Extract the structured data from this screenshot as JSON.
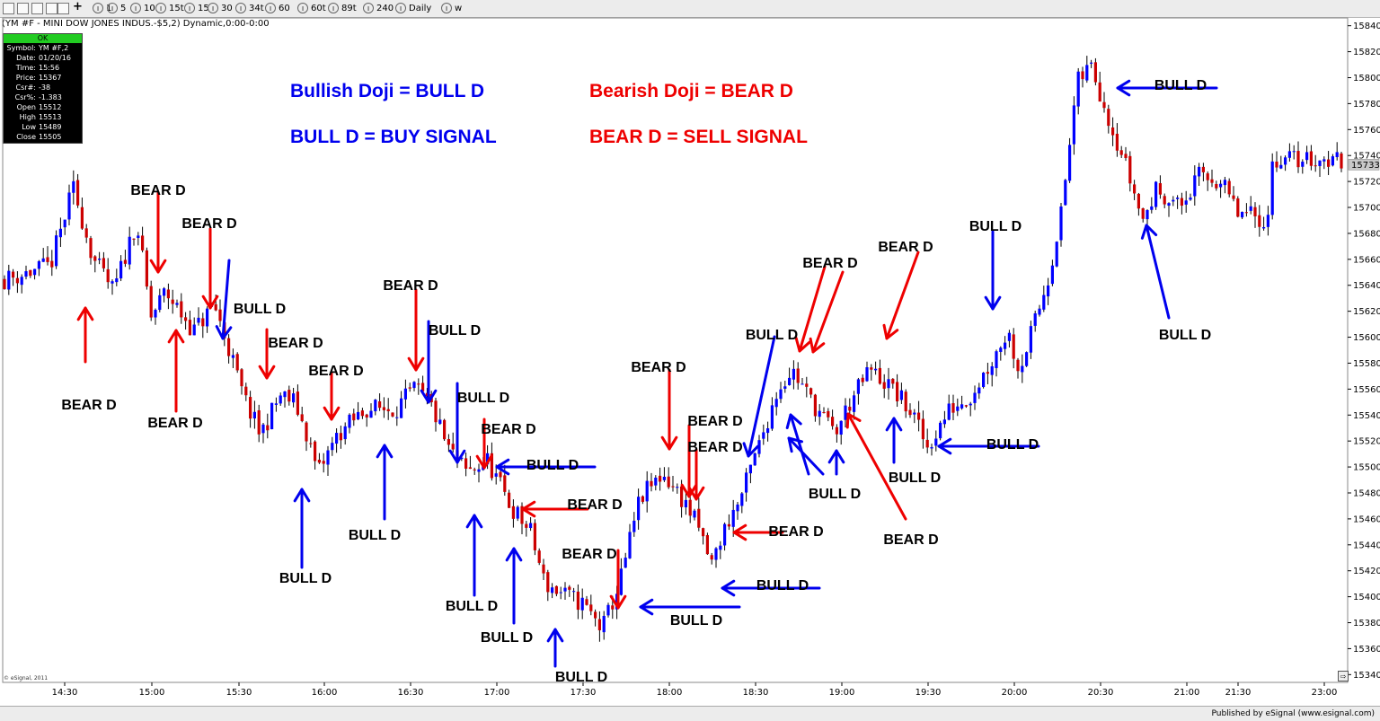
{
  "toolbar": {
    "intervals": [
      {
        "label": "1"
      },
      {
        "label": "5"
      },
      {
        "label": "10"
      },
      {
        "label": "15t"
      },
      {
        "label": "15"
      },
      {
        "label": "30"
      },
      {
        "label": "34t"
      },
      {
        "label": "60"
      },
      {
        "label": "60t"
      },
      {
        "label": "89t"
      },
      {
        "label": "240"
      },
      {
        "label": "Daily"
      },
      {
        "label": "w"
      }
    ]
  },
  "chart_title": "(YM #F - MINI DOW JONES INDUS.-$5,2) Dynamic,0:00-0:00",
  "info_box": {
    "status": "OK",
    "rows": [
      {
        "key": "Symbol:",
        "value": "YM #F,2"
      },
      {
        "key": "Date:",
        "value": "01/20/16"
      },
      {
        "key": "Time:",
        "value": "15:56"
      },
      {
        "key": "Price:",
        "value": "15367"
      },
      {
        "key": "Csr#:",
        "value": "-38"
      },
      {
        "key": "Csr%:",
        "value": "-1.383"
      },
      {
        "key": "Open",
        "value": "15512"
      },
      {
        "key": "High",
        "value": "15513"
      },
      {
        "key": "Low",
        "value": "15489"
      },
      {
        "key": "Close",
        "value": "15505"
      }
    ]
  },
  "legend": {
    "bull_def": "Bullish Doji = BULL D",
    "bull_signal": "BULL D = BUY SIGNAL",
    "bear_def": "Bearish Doji = BEAR D",
    "bear_signal": "BEAR D = SELL SIGNAL"
  },
  "footer": {
    "publisher": "Published by eSignal (www.esignal.com)",
    "copyright": "© eSignal, 2011"
  },
  "colors": {
    "up": "#0000ff",
    "down": "#cc0000",
    "bull": "#0000ee",
    "bear": "#ee0000"
  },
  "chart_data": {
    "type": "candlestick",
    "ylim": [
      15334,
      15846
    ],
    "yticks": [
      15340,
      15360,
      15380,
      15400,
      15420,
      15440,
      15460,
      15480,
      15500,
      15520,
      15540,
      15560,
      15580,
      15600,
      15620,
      15640,
      15660,
      15680,
      15700,
      15720,
      15740,
      15760,
      15780,
      15800,
      15820,
      15840
    ],
    "xticks": [
      "14:30",
      "15:00",
      "15:30",
      "16:00",
      "16:30",
      "17:00",
      "17:30",
      "18:00",
      "18:30",
      "19:00",
      "19:30",
      "20:00",
      "20:30",
      "21:00",
      "21:30",
      "23:00"
    ],
    "last_price": "15733",
    "close_path": [
      [
        "14:10",
        15645
      ],
      [
        "14:25",
        15655
      ],
      [
        "14:33",
        15715
      ],
      [
        "14:40",
        15660
      ],
      [
        "14:47",
        15635
      ],
      [
        "14:55",
        15690
      ],
      [
        "15:00",
        15615
      ],
      [
        "15:05",
        15635
      ],
      [
        "15:15",
        15605
      ],
      [
        "15:22",
        15625
      ],
      [
        "15:28",
        15585
      ],
      [
        "15:32",
        15555
      ],
      [
        "15:38",
        15525
      ],
      [
        "15:45",
        15555
      ],
      [
        "15:50",
        15550
      ],
      [
        "15:55",
        15520
      ],
      [
        "15:58",
        15495
      ],
      [
        "16:05",
        15525
      ],
      [
        "16:15",
        15545
      ],
      [
        "16:25",
        15545
      ],
      [
        "16:32",
        15560
      ],
      [
        "16:38",
        15545
      ],
      [
        "16:43",
        15515
      ],
      [
        "16:50",
        15495
      ],
      [
        "16:57",
        15505
      ],
      [
        "17:05",
        15470
      ],
      [
        "17:12",
        15450
      ],
      [
        "17:17",
        15410
      ],
      [
        "17:25",
        15400
      ],
      [
        "17:30",
        15395
      ],
      [
        "17:37",
        15375
      ],
      [
        "17:43",
        15410
      ],
      [
        "17:50",
        15475
      ],
      [
        "17:58",
        15495
      ],
      [
        "18:05",
        15475
      ],
      [
        "18:10",
        15455
      ],
      [
        "18:15",
        15425
      ],
      [
        "18:20",
        15455
      ],
      [
        "18:25",
        15475
      ],
      [
        "18:32",
        15520
      ],
      [
        "18:38",
        15560
      ],
      [
        "18:43",
        15575
      ],
      [
        "18:50",
        15550
      ],
      [
        "18:58",
        15525
      ],
      [
        "19:02",
        15545
      ],
      [
        "19:10",
        15575
      ],
      [
        "19:18",
        15560
      ],
      [
        "19:25",
        15540
      ],
      [
        "19:30",
        15515
      ],
      [
        "19:38",
        15545
      ],
      [
        "19:45",
        15555
      ],
      [
        "19:52",
        15580
      ],
      [
        "19:58",
        15605
      ],
      [
        "20:02",
        15575
      ],
      [
        "20:08",
        15615
      ],
      [
        "20:12",
        15645
      ],
      [
        "20:17",
        15700
      ],
      [
        "20:22",
        15795
      ],
      [
        "20:27",
        15810
      ],
      [
        "20:33",
        15770
      ],
      [
        "20:38",
        15740
      ],
      [
        "20:45",
        15690
      ],
      [
        "20:50",
        15715
      ],
      [
        "20:58",
        15700
      ],
      [
        "21:05",
        15725
      ],
      [
        "21:12",
        15720
      ],
      [
        "21:18",
        15695
      ],
      [
        "21:30",
        15690
      ],
      [
        "21:38",
        15685
      ],
      [
        "21:45",
        15690
      ],
      [
        "21:52",
        15730
      ],
      [
        "21:58",
        15737
      ]
    ],
    "annotations": [
      {
        "label": "BEAR D"
      },
      {
        "label": "BEAR D"
      },
      {
        "label": "BEAR D"
      },
      {
        "label": "BEAR D"
      },
      {
        "label": "BEAR D"
      },
      {
        "label": "BEAR D"
      },
      {
        "label": "BEAR D"
      },
      {
        "label": "BEAR D"
      },
      {
        "label": "BEAR D"
      },
      {
        "label": "BEAR D"
      },
      {
        "label": "BEAR D"
      },
      {
        "label": "BEAR D"
      },
      {
        "label": "BEAR D"
      },
      {
        "label": "BEAR D"
      },
      {
        "label": "BEAR D"
      },
      {
        "label": "BEAR D"
      },
      {
        "label": "BEAR D"
      },
      {
        "label": "BULL D"
      },
      {
        "label": "BULL D"
      },
      {
        "label": "BULL D"
      },
      {
        "label": "BULL D"
      },
      {
        "label": "BULL D"
      },
      {
        "label": "BULL D"
      },
      {
        "label": "BULL D"
      },
      {
        "label": "BULL D"
      },
      {
        "label": "BULL D"
      },
      {
        "label": "BULL D"
      },
      {
        "label": "BULL D"
      },
      {
        "label": "BULL D"
      },
      {
        "label": "BULL D"
      },
      {
        "label": "BULL D"
      },
      {
        "label": "BULL D"
      },
      {
        "label": "BULL D"
      },
      {
        "label": "BULL D"
      },
      {
        "label": "BULL D"
      },
      {
        "label": "BULL D"
      }
    ]
  }
}
